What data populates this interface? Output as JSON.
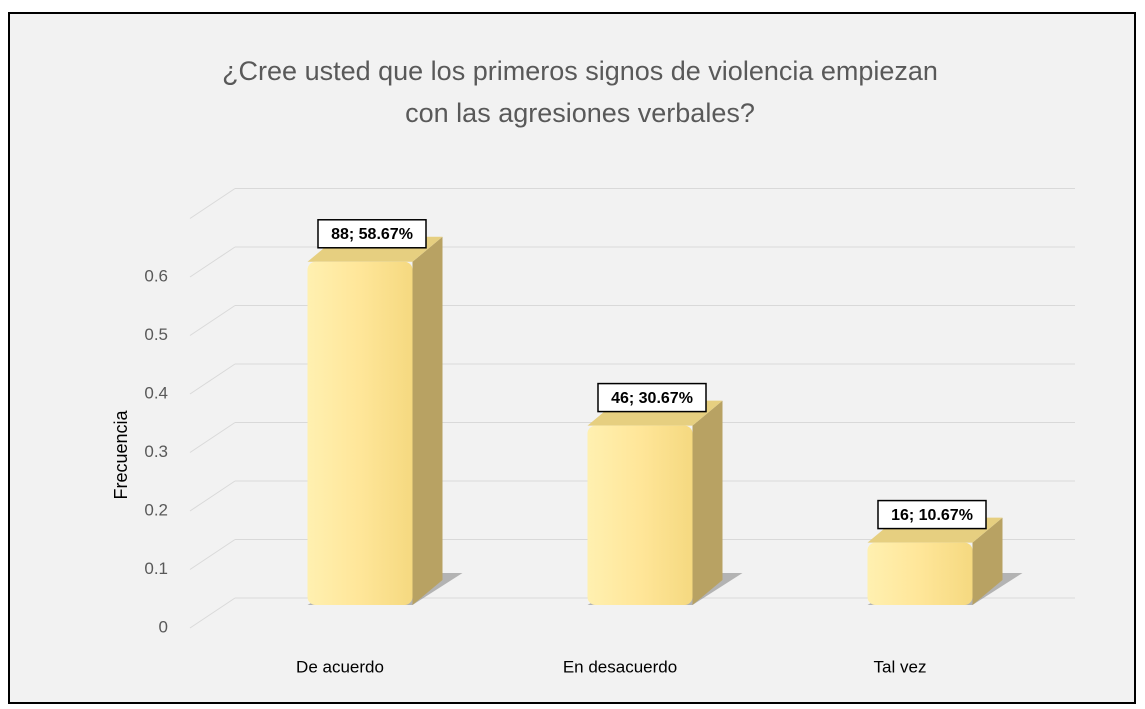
{
  "chart_data": {
    "type": "bar3d",
    "title": "¿Cree usted que los primeros signos de violencia empiezan con las agresiones verbales?",
    "y_label": "Frecuencia",
    "categories": [
      "De acuerdo",
      "En desacuerdo",
      "Tal vez"
    ],
    "values": [
      0.5867,
      0.3067,
      0.1067
    ],
    "value_labels": [
      "88; 58.67%",
      "46; 30.67%",
      "16; 10.67%"
    ],
    "color": "#ffe699",
    "ylim": [
      0,
      0.7
    ],
    "yticks": [
      0,
      0.1,
      0.2,
      0.3,
      0.4,
      0.5,
      0.6
    ],
    "grid": true
  }
}
